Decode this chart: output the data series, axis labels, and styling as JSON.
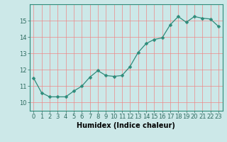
{
  "x": [
    0,
    1,
    2,
    3,
    4,
    5,
    6,
    7,
    8,
    9,
    10,
    11,
    12,
    13,
    14,
    15,
    16,
    17,
    18,
    19,
    20,
    21,
    22,
    23
  ],
  "y": [
    11.5,
    10.6,
    10.35,
    10.35,
    10.35,
    10.7,
    11.0,
    11.55,
    11.95,
    11.65,
    11.6,
    11.65,
    12.2,
    13.05,
    13.6,
    13.85,
    13.95,
    14.75,
    15.25,
    14.9,
    15.25,
    15.15,
    15.1,
    14.65
  ],
  "line_color": "#2e8b7a",
  "marker": "D",
  "marker_size": 2.5,
  "bg_color": "#cce8e8",
  "grid_color": "#ee8888",
  "xlabel": "Humidex (Indice chaleur)",
  "ylim": [
    9.5,
    16.0
  ],
  "xlim": [
    -0.5,
    23.5
  ],
  "yticks": [
    10,
    11,
    12,
    13,
    14,
    15
  ],
  "xticks": [
    0,
    1,
    2,
    3,
    4,
    5,
    6,
    7,
    8,
    9,
    10,
    11,
    12,
    13,
    14,
    15,
    16,
    17,
    18,
    19,
    20,
    21,
    22,
    23
  ],
  "xlabel_fontsize": 7.0,
  "tick_fontsize": 6.0
}
